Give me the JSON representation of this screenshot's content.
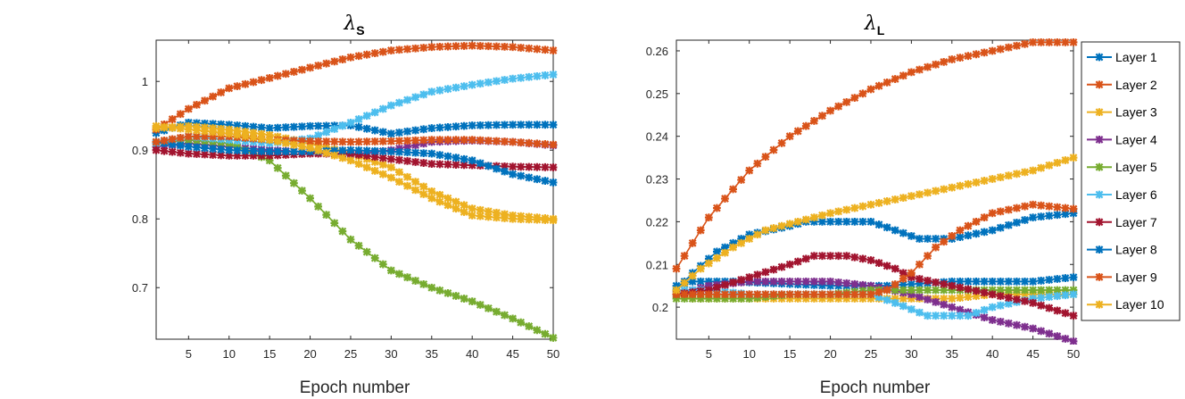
{
  "colors": {
    "c1": "#0072BD",
    "c2": "#D95319",
    "c3": "#EDB120",
    "c4": "#7E2F8E",
    "c5": "#77AC30",
    "c6": "#4DBEEE",
    "c7": "#A2142F"
  },
  "chart_data": [
    {
      "type": "line",
      "title_symbol": "λ",
      "title_sub": "S",
      "xlabel": "Epoch number",
      "ylabel": "",
      "xlim": [
        1,
        50
      ],
      "ylim": [
        0.625,
        1.06
      ],
      "xticks": [
        5,
        10,
        15,
        20,
        25,
        30,
        35,
        40,
        45,
        50
      ],
      "yticks": [
        0.7,
        0.8,
        0.9,
        1
      ],
      "ytick_labels": [
        "0.7",
        "0.8",
        "0.9",
        "1"
      ],
      "series": [
        {
          "name": "Layer 1",
          "color": "#0072BD",
          "points": [
            [
              1,
              0.925
            ],
            [
              5,
              0.94
            ],
            [
              10,
              0.937
            ],
            [
              15,
              0.932
            ],
            [
              20,
              0.935
            ],
            [
              25,
              0.936
            ],
            [
              30,
              0.924
            ],
            [
              35,
              0.932
            ],
            [
              40,
              0.936
            ],
            [
              45,
              0.937
            ],
            [
              50,
              0.937
            ]
          ]
        },
        {
          "name": "Layer 2",
          "color": "#D95319",
          "points": [
            [
              1,
              0.93
            ],
            [
              5,
              0.96
            ],
            [
              10,
              0.99
            ],
            [
              15,
              1.005
            ],
            [
              20,
              1.02
            ],
            [
              25,
              1.035
            ],
            [
              30,
              1.045
            ],
            [
              35,
              1.05
            ],
            [
              40,
              1.052
            ],
            [
              45,
              1.05
            ],
            [
              50,
              1.045
            ]
          ]
        },
        {
          "name": "Layer 3",
          "color": "#EDB120",
          "points": [
            [
              1,
              0.932
            ],
            [
              5,
              0.935
            ],
            [
              10,
              0.93
            ],
            [
              15,
              0.922
            ],
            [
              20,
              0.91
            ],
            [
              25,
              0.895
            ],
            [
              30,
              0.875
            ],
            [
              35,
              0.84
            ],
            [
              40,
              0.815
            ],
            [
              45,
              0.805
            ],
            [
              50,
              0.8
            ]
          ]
        },
        {
          "name": "Layer 4",
          "color": "#7E2F8E",
          "points": [
            [
              1,
              0.905
            ],
            [
              5,
              0.91
            ],
            [
              10,
              0.905
            ],
            [
              15,
              0.9
            ],
            [
              20,
              0.897
            ],
            [
              25,
              0.893
            ],
            [
              30,
              0.9
            ],
            [
              35,
              0.912
            ],
            [
              40,
              0.914
            ],
            [
              45,
              0.912
            ],
            [
              50,
              0.907
            ]
          ]
        },
        {
          "name": "Layer 5",
          "color": "#77AC30",
          "points": [
            [
              1,
              0.91
            ],
            [
              5,
              0.915
            ],
            [
              10,
              0.91
            ],
            [
              15,
              0.885
            ],
            [
              20,
              0.83
            ],
            [
              25,
              0.77
            ],
            [
              30,
              0.725
            ],
            [
              35,
              0.7
            ],
            [
              40,
              0.68
            ],
            [
              45,
              0.655
            ],
            [
              50,
              0.627
            ]
          ]
        },
        {
          "name": "Layer 6",
          "color": "#4DBEEE",
          "points": [
            [
              1,
              0.91
            ],
            [
              5,
              0.92
            ],
            [
              10,
              0.915
            ],
            [
              15,
              0.91
            ],
            [
              20,
              0.917
            ],
            [
              25,
              0.94
            ],
            [
              30,
              0.965
            ],
            [
              35,
              0.985
            ],
            [
              40,
              0.995
            ],
            [
              45,
              1.004
            ],
            [
              50,
              1.01
            ]
          ]
        },
        {
          "name": "Layer 7",
          "color": "#A2142F",
          "points": [
            [
              1,
              0.9
            ],
            [
              5,
              0.895
            ],
            [
              10,
              0.892
            ],
            [
              15,
              0.892
            ],
            [
              20,
              0.895
            ],
            [
              25,
              0.895
            ],
            [
              30,
              0.887
            ],
            [
              35,
              0.88
            ],
            [
              40,
              0.878
            ],
            [
              45,
              0.876
            ],
            [
              50,
              0.875
            ]
          ]
        },
        {
          "name": "Layer 8",
          "color": "#0072BD",
          "points": [
            [
              1,
              0.912
            ],
            [
              5,
              0.905
            ],
            [
              10,
              0.9
            ],
            [
              15,
              0.898
            ],
            [
              20,
              0.898
            ],
            [
              25,
              0.9
            ],
            [
              30,
              0.898
            ],
            [
              35,
              0.895
            ],
            [
              40,
              0.885
            ],
            [
              45,
              0.865
            ],
            [
              50,
              0.853
            ]
          ]
        },
        {
          "name": "Layer 9",
          "color": "#D95319",
          "points": [
            [
              1,
              0.912
            ],
            [
              5,
              0.92
            ],
            [
              10,
              0.92
            ],
            [
              15,
              0.915
            ],
            [
              20,
              0.913
            ],
            [
              25,
              0.912
            ],
            [
              30,
              0.913
            ],
            [
              35,
              0.915
            ],
            [
              40,
              0.915
            ],
            [
              45,
              0.912
            ],
            [
              50,
              0.908
            ]
          ]
        },
        {
          "name": "Layer 10",
          "color": "#EDB120",
          "points": [
            [
              1,
              0.935
            ],
            [
              5,
              0.93
            ],
            [
              10,
              0.924
            ],
            [
              15,
              0.915
            ],
            [
              20,
              0.903
            ],
            [
              25,
              0.885
            ],
            [
              30,
              0.86
            ],
            [
              35,
              0.83
            ],
            [
              40,
              0.805
            ],
            [
              45,
              0.8
            ],
            [
              50,
              0.798
            ]
          ]
        }
      ]
    },
    {
      "type": "line",
      "title_symbol": "λ",
      "title_sub": "L",
      "xlabel": "Epoch number",
      "ylabel": "",
      "xlim": [
        1,
        50
      ],
      "ylim": [
        0.1925,
        0.2625
      ],
      "xticks": [
        5,
        10,
        15,
        20,
        25,
        30,
        35,
        40,
        45,
        50
      ],
      "yticks": [
        0.2,
        0.21,
        0.22,
        0.23,
        0.24,
        0.25,
        0.26
      ],
      "ytick_labels": [
        "0.2",
        "0.21",
        "0.22",
        "0.23",
        "0.24",
        "0.25",
        "0.26"
      ],
      "legend_position": "right-outside",
      "series": [
        {
          "name": "Layer 1",
          "color": "#0072BD",
          "points": [
            [
              1,
              0.205
            ],
            [
              3,
              0.206
            ],
            [
              8,
              0.206
            ],
            [
              20,
              0.205
            ],
            [
              27,
              0.205
            ],
            [
              35,
              0.206
            ],
            [
              45,
              0.206
            ],
            [
              50,
              0.207
            ]
          ]
        },
        {
          "name": "Layer 2",
          "color": "#D95319",
          "points": [
            [
              1,
              0.209
            ],
            [
              5,
              0.221
            ],
            [
              10,
              0.232
            ],
            [
              15,
              0.24
            ],
            [
              20,
              0.246
            ],
            [
              25,
              0.251
            ],
            [
              30,
              0.255
            ],
            [
              35,
              0.258
            ],
            [
              40,
              0.26
            ],
            [
              45,
              0.262
            ],
            [
              50,
              0.262
            ]
          ]
        },
        {
          "name": "Layer 3",
          "color": "#EDB120",
          "points": [
            [
              1,
              0.203
            ],
            [
              3,
              0.202
            ],
            [
              25,
              0.202
            ],
            [
              30,
              0.202
            ],
            [
              35,
              0.202
            ],
            [
              40,
              0.203
            ],
            [
              45,
              0.203
            ],
            [
              50,
              0.203
            ]
          ]
        },
        {
          "name": "Layer 4",
          "color": "#7E2F8E",
          "points": [
            [
              1,
              0.203
            ],
            [
              5,
              0.205
            ],
            [
              10,
              0.206
            ],
            [
              15,
              0.206
            ],
            [
              20,
              0.206
            ],
            [
              25,
              0.205
            ],
            [
              30,
              0.203
            ],
            [
              35,
              0.2
            ],
            [
              40,
              0.197
            ],
            [
              45,
              0.195
            ],
            [
              50,
              0.192
            ]
          ]
        },
        {
          "name": "Layer 5",
          "color": "#77AC30",
          "points": [
            [
              1,
              0.202
            ],
            [
              5,
              0.202
            ],
            [
              10,
              0.202
            ],
            [
              15,
              0.203
            ],
            [
              20,
              0.203
            ],
            [
              25,
              0.204
            ],
            [
              30,
              0.204
            ],
            [
              35,
              0.204
            ],
            [
              40,
              0.204
            ],
            [
              45,
              0.204
            ],
            [
              50,
              0.204
            ]
          ]
        },
        {
          "name": "Layer 6",
          "color": "#4DBEEE",
          "points": [
            [
              1,
              0.204
            ],
            [
              5,
              0.204
            ],
            [
              10,
              0.203
            ],
            [
              15,
              0.203
            ],
            [
              20,
              0.203
            ],
            [
              25,
              0.203
            ],
            [
              28,
              0.201
            ],
            [
              32,
              0.198
            ],
            [
              37,
              0.198
            ],
            [
              40,
              0.2
            ],
            [
              45,
              0.202
            ],
            [
              50,
              0.203
            ]
          ]
        },
        {
          "name": "Layer 7",
          "color": "#A2142F",
          "points": [
            [
              1,
              0.203
            ],
            [
              5,
              0.204
            ],
            [
              10,
              0.207
            ],
            [
              15,
              0.21
            ],
            [
              18,
              0.212
            ],
            [
              22,
              0.212
            ],
            [
              25,
              0.211
            ],
            [
              28,
              0.209
            ],
            [
              30,
              0.207
            ],
            [
              35,
              0.205
            ],
            [
              40,
              0.203
            ],
            [
              45,
              0.201
            ],
            [
              50,
              0.198
            ]
          ]
        },
        {
          "name": "Layer 8",
          "color": "#0072BD",
          "points": [
            [
              1,
              0.204
            ],
            [
              3,
              0.208
            ],
            [
              6,
              0.213
            ],
            [
              10,
              0.217
            ],
            [
              15,
              0.219
            ],
            [
              17,
              0.22
            ],
            [
              25,
              0.22
            ],
            [
              28,
              0.218
            ],
            [
              31,
              0.216
            ],
            [
              35,
              0.216
            ],
            [
              40,
              0.218
            ],
            [
              45,
              0.221
            ],
            [
              50,
              0.222
            ]
          ]
        },
        {
          "name": "Layer 9",
          "color": "#D95319",
          "points": [
            [
              1,
              0.203
            ],
            [
              10,
              0.203
            ],
            [
              20,
              0.203
            ],
            [
              25,
              0.203
            ],
            [
              27,
              0.204
            ],
            [
              30,
              0.208
            ],
            [
              33,
              0.214
            ],
            [
              36,
              0.218
            ],
            [
              40,
              0.222
            ],
            [
              45,
              0.224
            ],
            [
              50,
              0.223
            ]
          ]
        },
        {
          "name": "Layer 10",
          "color": "#EDB120",
          "points": [
            [
              1,
              0.204
            ],
            [
              4,
              0.209
            ],
            [
              8,
              0.214
            ],
            [
              12,
              0.218
            ],
            [
              16,
              0.22
            ],
            [
              20,
              0.222
            ],
            [
              25,
              0.224
            ],
            [
              30,
              0.226
            ],
            [
              35,
              0.228
            ],
            [
              40,
              0.23
            ],
            [
              45,
              0.232
            ],
            [
              50,
              0.235
            ]
          ]
        }
      ]
    }
  ]
}
